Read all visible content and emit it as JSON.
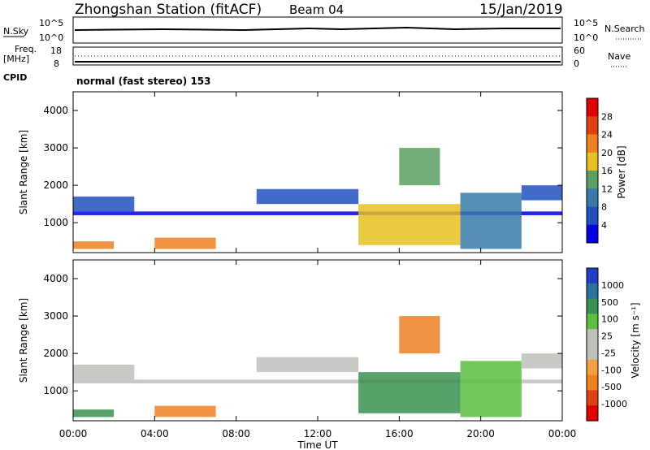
{
  "header": {
    "station": "Zhongshan Station (fitACF)",
    "beam": "Beam 04",
    "date": "15/Jan/2019"
  },
  "strip_labels": {
    "nsky": "N.Sky",
    "nsearch": "N.Search",
    "freq": "Freq.",
    "freq_unit": "[MHz]",
    "nave": "Nave",
    "cpid": "CPID",
    "cpid_text": "normal (fast stereo) 153",
    "nsky_ticks": [
      "10^5",
      "10^0"
    ],
    "nsearch_ticks": [
      "10^5",
      "10^0"
    ],
    "freq_ticks": [
      "18",
      "8"
    ],
    "nave_ticks": [
      "60",
      "0"
    ]
  },
  "colors": {
    "power_scale": [
      "#0000e0",
      "#2050c0",
      "#3a7aa8",
      "#5aa060",
      "#e8c020",
      "#f08020",
      "#e04010",
      "#e00000"
    ],
    "velocity_scale": [
      "#e00000",
      "#e04010",
      "#f08020",
      "#f5a040",
      "#c0c0b8",
      "#c0c0b8",
      "#5ac040",
      "#3a9050",
      "#2a70a0",
      "#2040c0"
    ],
    "background": "#ffffff"
  },
  "chart_data": [
    {
      "type": "heatmap",
      "title": "",
      "xlabel": "Time UT",
      "ylabel": "Slant Range [km]",
      "x_ticks": [
        "00:00",
        "04:00",
        "08:00",
        "12:00",
        "16:00",
        "20:00",
        "00:00"
      ],
      "y_ticks": [
        1000,
        2000,
        3000,
        4000
      ],
      "ylim": [
        200,
        4500
      ],
      "xlim_hours": [
        0,
        24
      ],
      "colorbar_label": "Power [dB]",
      "colorbar_ticks": [
        4,
        8,
        12,
        16,
        20,
        24,
        28
      ],
      "bands": [
        {
          "t": [
            0,
            3
          ],
          "r": [
            1300,
            1700
          ],
          "level": 1
        },
        {
          "t": [
            0,
            24
          ],
          "r": [
            1200,
            1300
          ],
          "level": 0
        },
        {
          "t": [
            0,
            2
          ],
          "r": [
            300,
            500
          ],
          "level": 5
        },
        {
          "t": [
            4,
            7
          ],
          "r": [
            300,
            600
          ],
          "level": 5
        },
        {
          "t": [
            9,
            14
          ],
          "r": [
            1500,
            1900
          ],
          "level": 1
        },
        {
          "t": [
            14,
            19
          ],
          "r": [
            400,
            1500
          ],
          "level": 4
        },
        {
          "t": [
            16,
            18
          ],
          "r": [
            2000,
            3000
          ],
          "level": 3
        },
        {
          "t": [
            19,
            22
          ],
          "r": [
            300,
            1800
          ],
          "level": 2
        },
        {
          "t": [
            22,
            24
          ],
          "r": [
            1600,
            2000
          ],
          "level": 1
        }
      ]
    },
    {
      "type": "heatmap",
      "title": "",
      "xlabel": "Time UT",
      "ylabel": "Slant Range [km]",
      "x_ticks": [
        "00:00",
        "04:00",
        "08:00",
        "12:00",
        "16:00",
        "20:00",
        "00:00"
      ],
      "y_ticks": [
        1000,
        2000,
        3000,
        4000
      ],
      "ylim": [
        200,
        4500
      ],
      "xlim_hours": [
        0,
        24
      ],
      "colorbar_label": "Velocity [m s⁻¹]",
      "colorbar_ticks": [
        1000,
        500,
        100,
        25,
        -25,
        -100,
        -500,
        -1000
      ],
      "bands": [
        {
          "t": [
            0,
            3
          ],
          "r": [
            1300,
            1700
          ],
          "level": 4
        },
        {
          "t": [
            0,
            24
          ],
          "r": [
            1200,
            1300
          ],
          "level": 4
        },
        {
          "t": [
            0,
            2
          ],
          "r": [
            300,
            500
          ],
          "level": 7
        },
        {
          "t": [
            4,
            7
          ],
          "r": [
            300,
            600
          ],
          "level": 2
        },
        {
          "t": [
            9,
            14
          ],
          "r": [
            1500,
            1900
          ],
          "level": 4
        },
        {
          "t": [
            14,
            19
          ],
          "r": [
            400,
            1500
          ],
          "level": 7
        },
        {
          "t": [
            16,
            18
          ],
          "r": [
            2000,
            3000
          ],
          "level": 2
        },
        {
          "t": [
            19,
            22
          ],
          "r": [
            300,
            1800
          ],
          "level": 6
        },
        {
          "t": [
            22,
            24
          ],
          "r": [
            1600,
            2000
          ],
          "level": 4
        }
      ]
    }
  ]
}
